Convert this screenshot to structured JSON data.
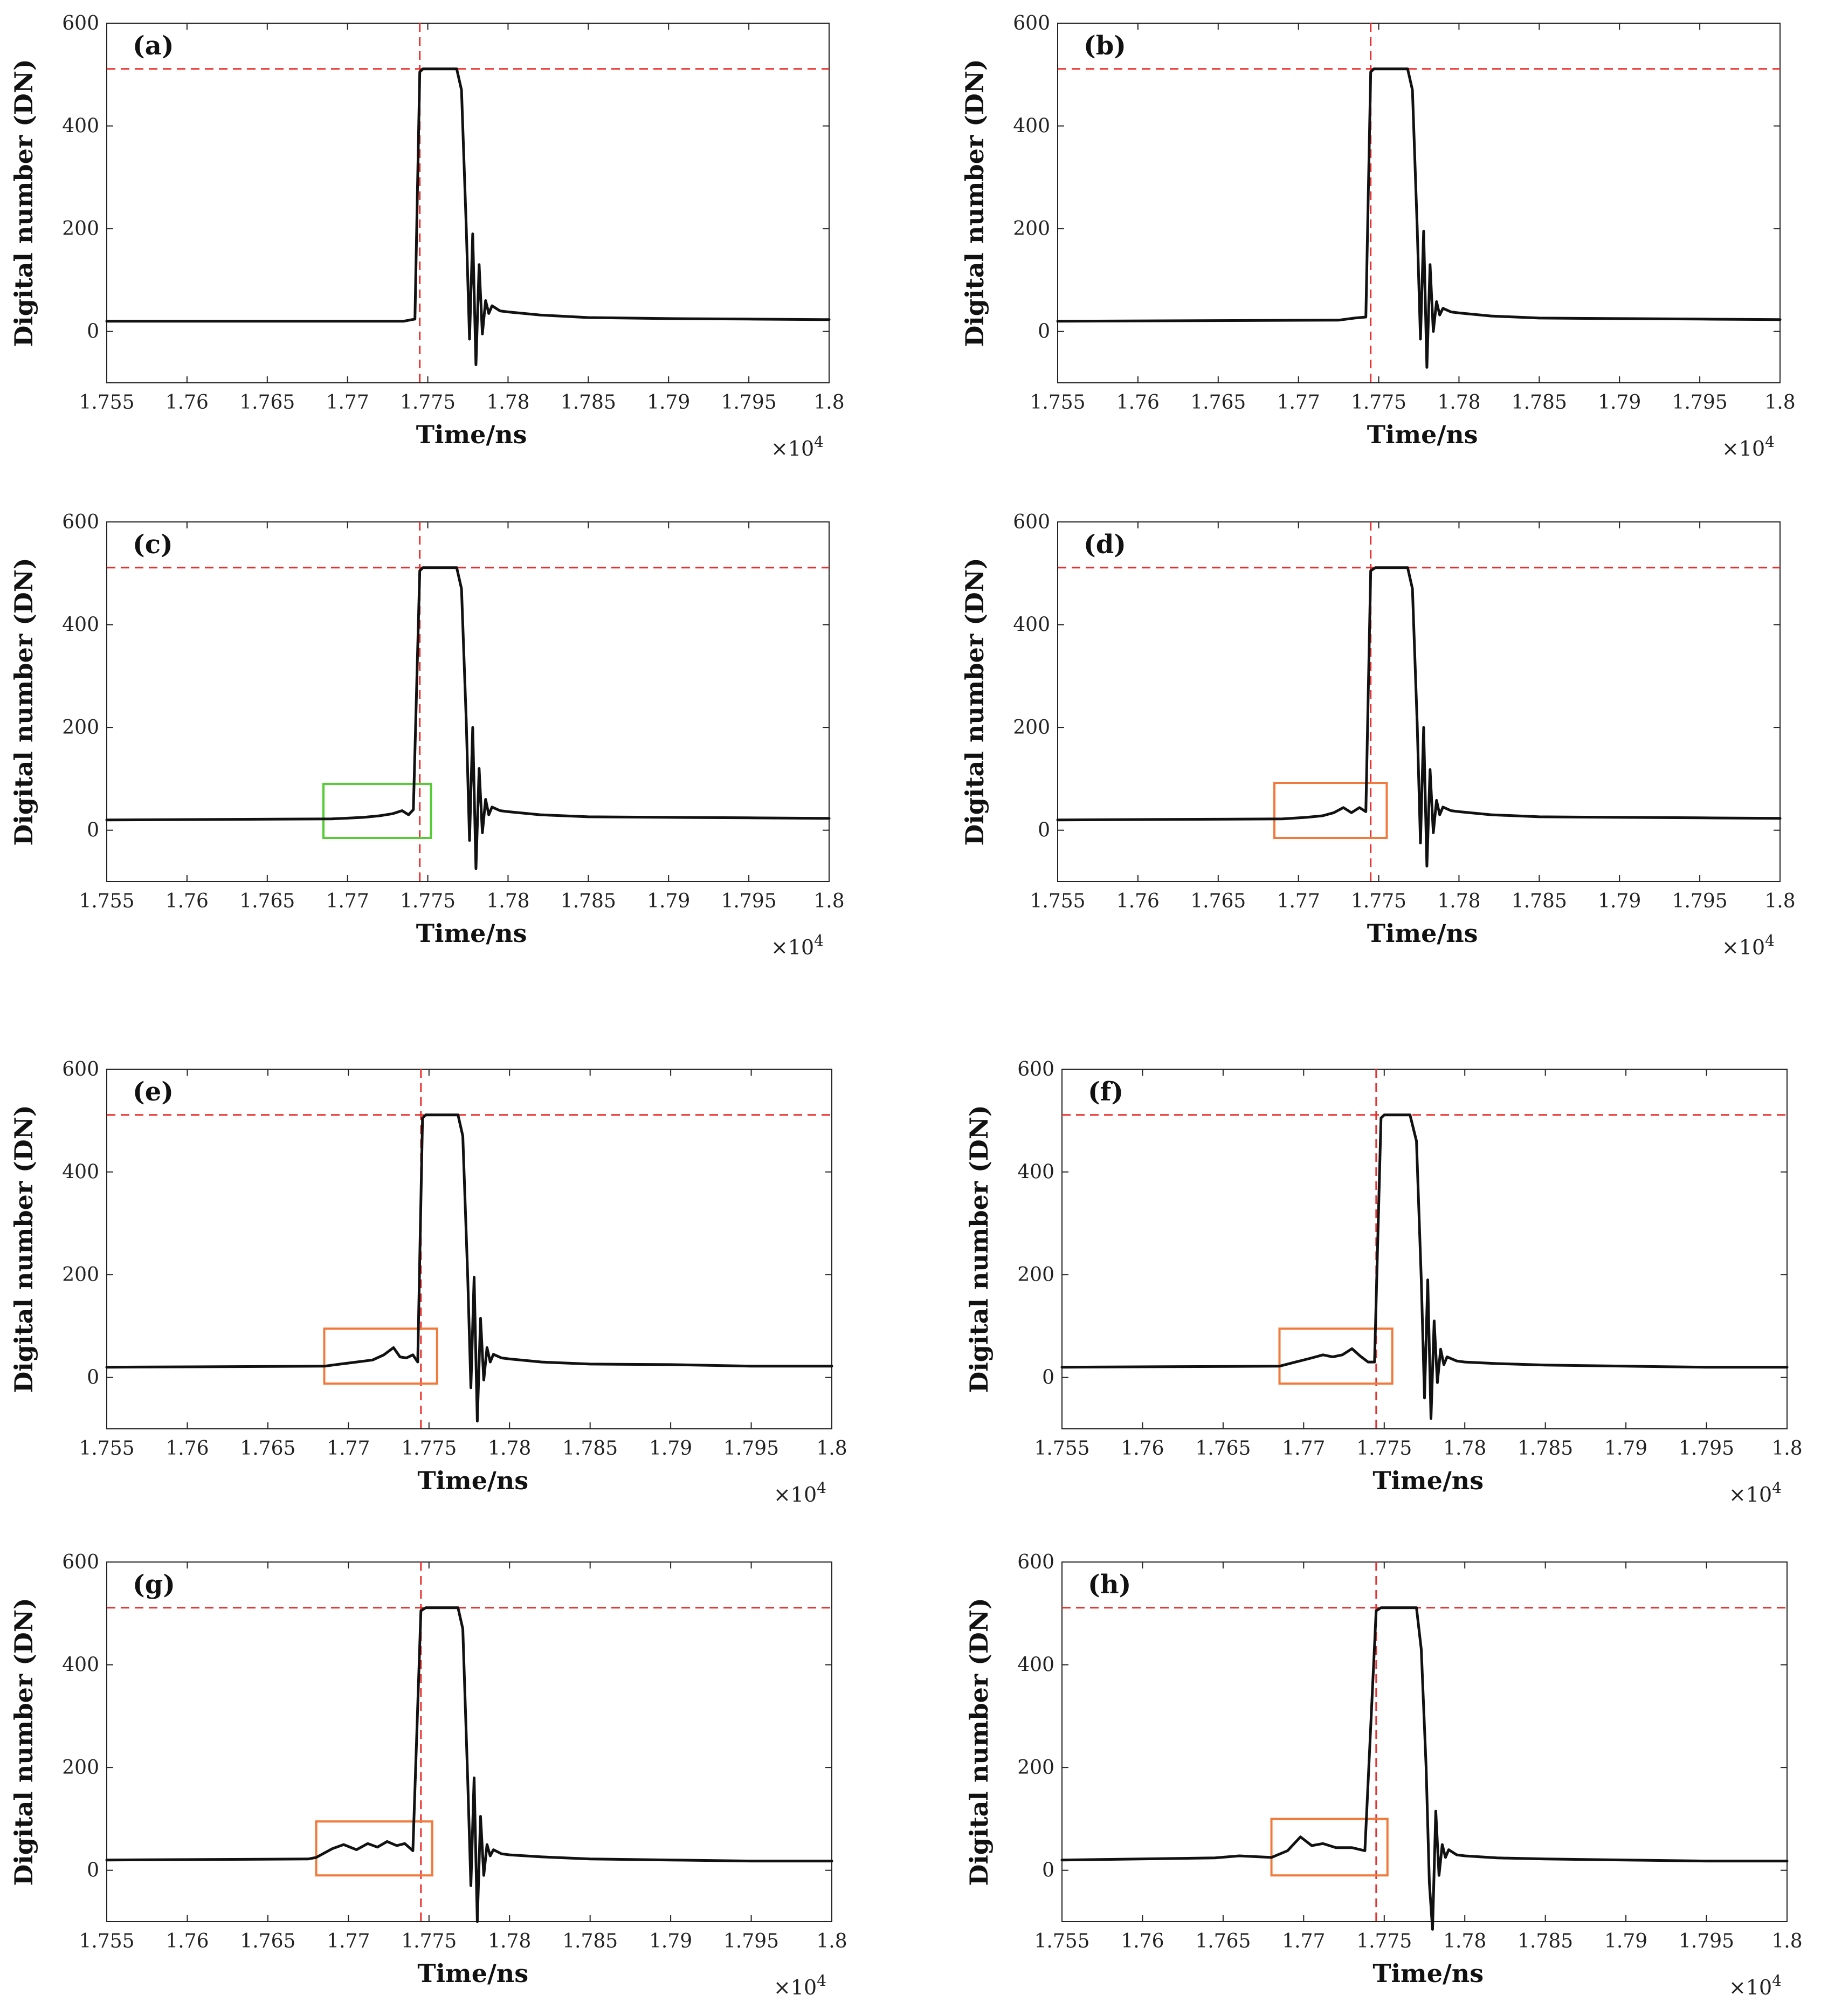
{
  "figure": {
    "background": "#ffffff"
  },
  "axes": {
    "xlabel": "Time/ns",
    "ylabel": "Digital number (DN)",
    "xlim": [
      1.755,
      1.8
    ],
    "ylim": [
      -100,
      600
    ],
    "xticks": [
      1.755,
      1.76,
      1.765,
      1.77,
      1.775,
      1.78,
      1.785,
      1.79,
      1.795,
      1.8
    ],
    "xtick_labels": [
      "1.755",
      "1.76",
      "1.765",
      "1.77",
      "1.775",
      "1.78",
      "1.785",
      "1.79",
      "1.795",
      "1.8"
    ],
    "yticks": [
      0,
      200,
      400,
      600
    ],
    "ytick_labels": [
      "0",
      "200",
      "400",
      "600"
    ],
    "multiplier_base": "×10",
    "multiplier_exp": "4",
    "reference_level": 511,
    "reference_color": "#e8302e",
    "trace_color": "#111111"
  },
  "chart_data": [
    {
      "type": "line",
      "label": "(a)",
      "marker_time": 1.7745,
      "box": null,
      "x": [
        1.755,
        1.7735,
        1.7742,
        1.7745,
        1.7747,
        1.7768,
        1.7771,
        1.7774,
        1.7776,
        1.7778,
        1.778,
        1.7782,
        1.7784,
        1.7786,
        1.7788,
        1.779,
        1.7795,
        1.78,
        1.782,
        1.785,
        1.79,
        1.795,
        1.8
      ],
      "y": [
        20,
        20,
        24,
        505,
        511,
        511,
        470,
        200,
        -15,
        190,
        -65,
        130,
        -5,
        60,
        35,
        50,
        40,
        38,
        32,
        27,
        25,
        24,
        23
      ]
    },
    {
      "type": "line",
      "label": "(b)",
      "marker_time": 1.7745,
      "box": null,
      "x": [
        1.755,
        1.7725,
        1.7735,
        1.7742,
        1.7745,
        1.7747,
        1.7768,
        1.7771,
        1.7774,
        1.7776,
        1.7778,
        1.778,
        1.7782,
        1.7784,
        1.7786,
        1.7788,
        1.779,
        1.7795,
        1.78,
        1.782,
        1.785,
        1.79,
        1.795,
        1.8
      ],
      "y": [
        20,
        22,
        26,
        28,
        505,
        511,
        511,
        470,
        200,
        -15,
        195,
        -70,
        130,
        0,
        58,
        32,
        45,
        38,
        36,
        30,
        26,
        25,
        24,
        23
      ]
    },
    {
      "type": "line",
      "label": "(c)",
      "marker_time": 1.7745,
      "box": {
        "x0": 1.7685,
        "x1": 1.7752,
        "y0": -15,
        "y1": 90,
        "color": "#55cc33"
      },
      "x": [
        1.755,
        1.769,
        1.771,
        1.772,
        1.7728,
        1.7734,
        1.7738,
        1.7741,
        1.7745,
        1.7747,
        1.7768,
        1.7771,
        1.7774,
        1.7776,
        1.7778,
        1.778,
        1.7782,
        1.7784,
        1.7786,
        1.7788,
        1.779,
        1.7795,
        1.78,
        1.782,
        1.785,
        1.79,
        1.795,
        1.8
      ],
      "y": [
        20,
        22,
        25,
        28,
        32,
        38,
        30,
        40,
        505,
        511,
        511,
        470,
        210,
        -20,
        200,
        -75,
        120,
        -5,
        60,
        30,
        45,
        38,
        36,
        30,
        26,
        25,
        24,
        23
      ]
    },
    {
      "type": "line",
      "label": "(d)",
      "marker_time": 1.7745,
      "box": {
        "x0": 1.7685,
        "x1": 1.7755,
        "y0": -15,
        "y1": 92,
        "color": "#f07a3c"
      },
      "x": [
        1.755,
        1.769,
        1.7705,
        1.7715,
        1.7722,
        1.7728,
        1.7733,
        1.7738,
        1.7742,
        1.7745,
        1.7748,
        1.7768,
        1.7771,
        1.7774,
        1.7776,
        1.7778,
        1.778,
        1.7782,
        1.7784,
        1.7786,
        1.7788,
        1.779,
        1.7795,
        1.78,
        1.782,
        1.785,
        1.79,
        1.795,
        1.8
      ],
      "y": [
        20,
        22,
        25,
        28,
        34,
        44,
        34,
        44,
        36,
        505,
        511,
        511,
        470,
        205,
        -25,
        200,
        -70,
        118,
        -5,
        58,
        30,
        45,
        38,
        36,
        30,
        26,
        25,
        24,
        23
      ]
    },
    {
      "type": "line",
      "label": "(e)",
      "marker_time": 1.7745,
      "box": {
        "x0": 1.7685,
        "x1": 1.7755,
        "y0": -12,
        "y1": 95,
        "color": "#f07a3c"
      },
      "x": [
        1.755,
        1.7685,
        1.7695,
        1.7705,
        1.7715,
        1.7722,
        1.7728,
        1.7732,
        1.7736,
        1.774,
        1.7743,
        1.7746,
        1.7748,
        1.7768,
        1.7771,
        1.7774,
        1.7776,
        1.7778,
        1.778,
        1.7782,
        1.7784,
        1.7786,
        1.7788,
        1.779,
        1.7795,
        1.78,
        1.782,
        1.785,
        1.79,
        1.795,
        1.8
      ],
      "y": [
        20,
        22,
        26,
        30,
        34,
        44,
        58,
        40,
        38,
        44,
        30,
        505,
        511,
        511,
        470,
        200,
        -20,
        195,
        -85,
        115,
        -5,
        58,
        30,
        45,
        38,
        36,
        30,
        26,
        25,
        22,
        22
      ]
    },
    {
      "type": "line",
      "label": "(f)",
      "marker_time": 1.7745,
      "box": {
        "x0": 1.7685,
        "x1": 1.7755,
        "y0": -12,
        "y1": 95,
        "color": "#f07a3c"
      },
      "x": [
        1.755,
        1.7685,
        1.7695,
        1.7705,
        1.7712,
        1.7718,
        1.7724,
        1.773,
        1.7735,
        1.774,
        1.7744,
        1.7748,
        1.775,
        1.7766,
        1.777,
        1.7773,
        1.7775,
        1.7777,
        1.7779,
        1.7781,
        1.7783,
        1.7785,
        1.7787,
        1.7789,
        1.7795,
        1.78,
        1.782,
        1.785,
        1.79,
        1.795,
        1.8
      ],
      "y": [
        20,
        22,
        30,
        38,
        44,
        40,
        44,
        56,
        42,
        30,
        30,
        505,
        511,
        511,
        460,
        190,
        -40,
        190,
        -80,
        110,
        -10,
        55,
        25,
        40,
        32,
        30,
        27,
        24,
        22,
        20,
        20
      ]
    },
    {
      "type": "line",
      "label": "(g)",
      "marker_time": 1.7745,
      "box": {
        "x0": 1.768,
        "x1": 1.7752,
        "y0": -10,
        "y1": 95,
        "color": "#f07a3c"
      },
      "x": [
        1.755,
        1.7675,
        1.768,
        1.769,
        1.7697,
        1.7705,
        1.7712,
        1.7718,
        1.7724,
        1.773,
        1.7735,
        1.774,
        1.7745,
        1.7748,
        1.7768,
        1.7771,
        1.7774,
        1.7776,
        1.7778,
        1.778,
        1.7782,
        1.7784,
        1.7786,
        1.7788,
        1.779,
        1.7795,
        1.78,
        1.782,
        1.785,
        1.79,
        1.795,
        1.8
      ],
      "y": [
        20,
        22,
        25,
        42,
        50,
        40,
        52,
        45,
        56,
        48,
        52,
        38,
        505,
        511,
        511,
        470,
        180,
        -30,
        180,
        -100,
        105,
        -10,
        50,
        28,
        40,
        32,
        30,
        26,
        22,
        20,
        18,
        18
      ]
    },
    {
      "type": "line",
      "label": "(h)",
      "marker_time": 1.7745,
      "box": {
        "x0": 1.768,
        "x1": 1.7752,
        "y0": -10,
        "y1": 100,
        "color": "#f07a3c"
      },
      "x": [
        1.755,
        1.7645,
        1.766,
        1.768,
        1.769,
        1.7698,
        1.7705,
        1.7712,
        1.772,
        1.773,
        1.7738,
        1.7745,
        1.7748,
        1.777,
        1.7773,
        1.7776,
        1.7778,
        1.778,
        1.7782,
        1.7784,
        1.7786,
        1.7788,
        1.779,
        1.7795,
        1.78,
        1.782,
        1.785,
        1.79,
        1.795,
        1.8
      ],
      "y": [
        20,
        24,
        28,
        25,
        38,
        65,
        48,
        52,
        44,
        44,
        38,
        505,
        511,
        511,
        430,
        200,
        -25,
        -115,
        115,
        -10,
        50,
        25,
        40,
        30,
        28,
        24,
        22,
        20,
        18,
        18
      ]
    }
  ]
}
